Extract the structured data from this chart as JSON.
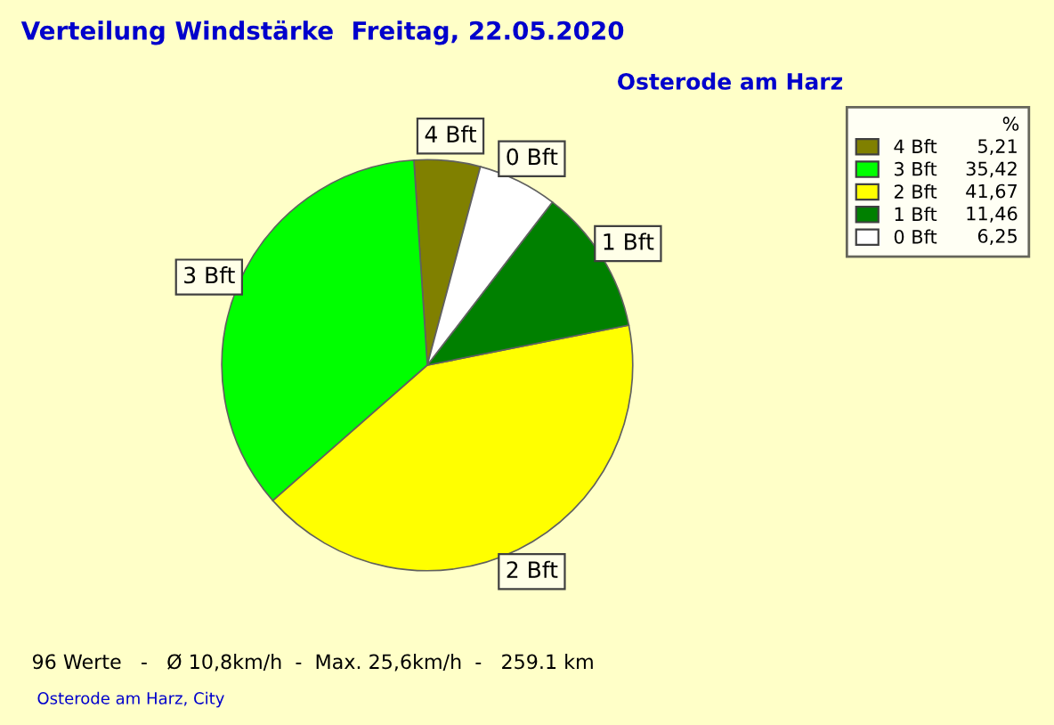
{
  "chart_data": {
    "type": "pie",
    "title": "Verteilung Windstärke  Freitag, 22.05.2020",
    "subtitle": "Osterode am Harz",
    "categories": [
      "4 Bft",
      "3 Bft",
      "2 Bft",
      "1 Bft",
      "0 Bft"
    ],
    "values": [
      5.21,
      35.42,
      41.67,
      11.46,
      6.25
    ],
    "value_labels": [
      "5,21",
      "35,42",
      "41,67",
      "11,46",
      "6,25"
    ],
    "colors": [
      "#808000",
      "#00ff00",
      "#ffff00",
      "#008000",
      "#ffffff"
    ],
    "legend": "top right",
    "legend_title": "%",
    "annotations": [
      "96 Werte   -   Ø 10,8km/h  -  Max. 25,6km/h  -   259.1 km",
      "Osterode am Harz, City"
    ]
  }
}
